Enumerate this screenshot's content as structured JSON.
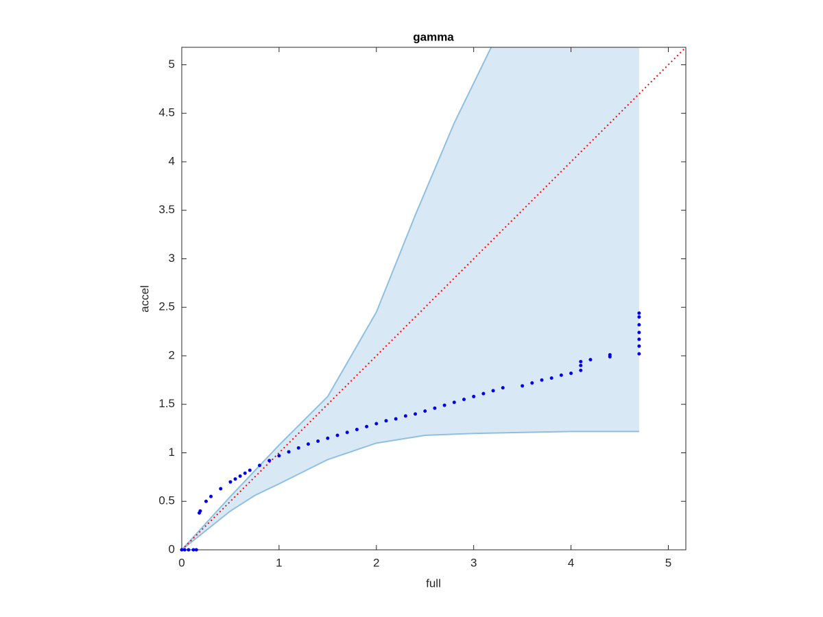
{
  "chart_data": {
    "type": "scatter",
    "title": "gamma",
    "x_label": "full",
    "y_label": "accel",
    "xlim": [
      0,
      5.18
    ],
    "ylim": [
      0,
      5.18
    ],
    "xticks": [
      0,
      1,
      2,
      3,
      4,
      5
    ],
    "yticks": [
      0,
      0.5,
      1,
      1.5,
      2,
      2.5,
      3,
      3.5,
      4,
      4.5,
      5
    ],
    "band": {
      "color": "#d9e8f5",
      "edge_color": "#8fbfe0",
      "upper": {
        "x": [
          0,
          0.5,
          1,
          1.5,
          2,
          2.4,
          2.8,
          3.18
        ],
        "y": [
          0,
          0.55,
          1.08,
          1.58,
          2.45,
          3.45,
          4.4,
          5.18
        ]
      },
      "lower": {
        "x": [
          0,
          0.25,
          0.5,
          0.75,
          1,
          1.5,
          2,
          2.5,
          3,
          3.5,
          4,
          4.7
        ],
        "y": [
          0,
          0.2,
          0.4,
          0.56,
          0.68,
          0.93,
          1.1,
          1.18,
          1.2,
          1.21,
          1.22,
          1.22
        ]
      }
    },
    "reference_line": {
      "color": "#ff0000",
      "style": "dotted"
    },
    "series": [
      {
        "color": "#0000ee",
        "x": [
          0,
          0.03,
          0.07,
          0.12,
          0.15,
          0.18,
          0.19,
          0.25,
          0.3,
          0.4,
          0.5,
          0.55,
          0.6,
          0.65,
          0.7,
          0.8,
          0.9,
          1.0,
          1.1,
          1.2,
          1.3,
          1.4,
          1.5,
          1.6,
          1.7,
          1.8,
          1.9,
          2.0,
          2.1,
          2.2,
          2.3,
          2.4,
          2.5,
          2.6,
          2.7,
          2.8,
          2.9,
          3.0,
          3.1,
          3.2,
          3.3,
          3.5,
          3.6,
          3.7,
          3.8,
          3.9,
          4.0,
          4.1,
          4.1,
          4.1,
          4.2,
          4.4,
          4.4,
          4.7,
          4.7,
          4.7,
          4.7,
          4.7,
          4.7,
          4.7
        ],
        "values": [
          0,
          0,
          0,
          0,
          0,
          0.38,
          0.4,
          0.5,
          0.55,
          0.63,
          0.7,
          0.73,
          0.76,
          0.79,
          0.82,
          0.87,
          0.92,
          0.97,
          1.01,
          1.05,
          1.09,
          1.12,
          1.15,
          1.18,
          1.21,
          1.24,
          1.27,
          1.3,
          1.33,
          1.35,
          1.38,
          1.4,
          1.43,
          1.46,
          1.49,
          1.52,
          1.55,
          1.58,
          1.61,
          1.64,
          1.67,
          1.69,
          1.72,
          1.75,
          1.77,
          1.8,
          1.82,
          1.85,
          1.9,
          1.94,
          1.96,
          1.99,
          2.01,
          2.02,
          2.1,
          2.17,
          2.24,
          2.32,
          2.4,
          2.44
        ]
      }
    ]
  }
}
